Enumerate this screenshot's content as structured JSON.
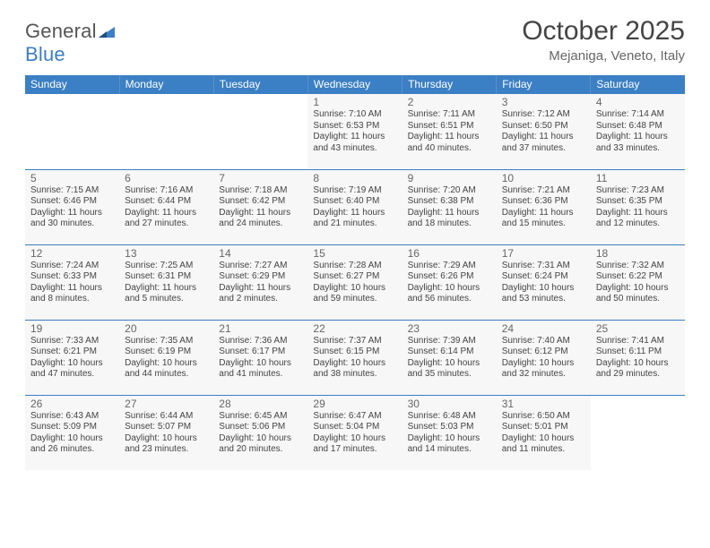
{
  "colors": {
    "accent": "#3b7fc4",
    "text": "#333333",
    "muted": "#666666",
    "grid": "#3b7fc4",
    "cell_bg": "#f7f7f7",
    "page_bg": "#ffffff"
  },
  "logo": {
    "word1": "General",
    "word2": "Blue"
  },
  "header": {
    "month_title": "October 2025",
    "location": "Mejaniga, Veneto, Italy"
  },
  "day_headers": [
    "Sunday",
    "Monday",
    "Tuesday",
    "Wednesday",
    "Thursday",
    "Friday",
    "Saturday"
  ],
  "weeks": [
    [
      {
        "empty": true
      },
      {
        "empty": true
      },
      {
        "empty": true
      },
      {
        "day": "1",
        "sunrise": "Sunrise: 7:10 AM",
        "sunset": "Sunset: 6:53 PM",
        "day1": "Daylight: 11 hours",
        "day2": "and 43 minutes."
      },
      {
        "day": "2",
        "sunrise": "Sunrise: 7:11 AM",
        "sunset": "Sunset: 6:51 PM",
        "day1": "Daylight: 11 hours",
        "day2": "and 40 minutes."
      },
      {
        "day": "3",
        "sunrise": "Sunrise: 7:12 AM",
        "sunset": "Sunset: 6:50 PM",
        "day1": "Daylight: 11 hours",
        "day2": "and 37 minutes."
      },
      {
        "day": "4",
        "sunrise": "Sunrise: 7:14 AM",
        "sunset": "Sunset: 6:48 PM",
        "day1": "Daylight: 11 hours",
        "day2": "and 33 minutes."
      }
    ],
    [
      {
        "day": "5",
        "sunrise": "Sunrise: 7:15 AM",
        "sunset": "Sunset: 6:46 PM",
        "day1": "Daylight: 11 hours",
        "day2": "and 30 minutes."
      },
      {
        "day": "6",
        "sunrise": "Sunrise: 7:16 AM",
        "sunset": "Sunset: 6:44 PM",
        "day1": "Daylight: 11 hours",
        "day2": "and 27 minutes."
      },
      {
        "day": "7",
        "sunrise": "Sunrise: 7:18 AM",
        "sunset": "Sunset: 6:42 PM",
        "day1": "Daylight: 11 hours",
        "day2": "and 24 minutes."
      },
      {
        "day": "8",
        "sunrise": "Sunrise: 7:19 AM",
        "sunset": "Sunset: 6:40 PM",
        "day1": "Daylight: 11 hours",
        "day2": "and 21 minutes."
      },
      {
        "day": "9",
        "sunrise": "Sunrise: 7:20 AM",
        "sunset": "Sunset: 6:38 PM",
        "day1": "Daylight: 11 hours",
        "day2": "and 18 minutes."
      },
      {
        "day": "10",
        "sunrise": "Sunrise: 7:21 AM",
        "sunset": "Sunset: 6:36 PM",
        "day1": "Daylight: 11 hours",
        "day2": "and 15 minutes."
      },
      {
        "day": "11",
        "sunrise": "Sunrise: 7:23 AM",
        "sunset": "Sunset: 6:35 PM",
        "day1": "Daylight: 11 hours",
        "day2": "and 12 minutes."
      }
    ],
    [
      {
        "day": "12",
        "sunrise": "Sunrise: 7:24 AM",
        "sunset": "Sunset: 6:33 PM",
        "day1": "Daylight: 11 hours",
        "day2": "and 8 minutes."
      },
      {
        "day": "13",
        "sunrise": "Sunrise: 7:25 AM",
        "sunset": "Sunset: 6:31 PM",
        "day1": "Daylight: 11 hours",
        "day2": "and 5 minutes."
      },
      {
        "day": "14",
        "sunrise": "Sunrise: 7:27 AM",
        "sunset": "Sunset: 6:29 PM",
        "day1": "Daylight: 11 hours",
        "day2": "and 2 minutes."
      },
      {
        "day": "15",
        "sunrise": "Sunrise: 7:28 AM",
        "sunset": "Sunset: 6:27 PM",
        "day1": "Daylight: 10 hours",
        "day2": "and 59 minutes."
      },
      {
        "day": "16",
        "sunrise": "Sunrise: 7:29 AM",
        "sunset": "Sunset: 6:26 PM",
        "day1": "Daylight: 10 hours",
        "day2": "and 56 minutes."
      },
      {
        "day": "17",
        "sunrise": "Sunrise: 7:31 AM",
        "sunset": "Sunset: 6:24 PM",
        "day1": "Daylight: 10 hours",
        "day2": "and 53 minutes."
      },
      {
        "day": "18",
        "sunrise": "Sunrise: 7:32 AM",
        "sunset": "Sunset: 6:22 PM",
        "day1": "Daylight: 10 hours",
        "day2": "and 50 minutes."
      }
    ],
    [
      {
        "day": "19",
        "sunrise": "Sunrise: 7:33 AM",
        "sunset": "Sunset: 6:21 PM",
        "day1": "Daylight: 10 hours",
        "day2": "and 47 minutes."
      },
      {
        "day": "20",
        "sunrise": "Sunrise: 7:35 AM",
        "sunset": "Sunset: 6:19 PM",
        "day1": "Daylight: 10 hours",
        "day2": "and 44 minutes."
      },
      {
        "day": "21",
        "sunrise": "Sunrise: 7:36 AM",
        "sunset": "Sunset: 6:17 PM",
        "day1": "Daylight: 10 hours",
        "day2": "and 41 minutes."
      },
      {
        "day": "22",
        "sunrise": "Sunrise: 7:37 AM",
        "sunset": "Sunset: 6:15 PM",
        "day1": "Daylight: 10 hours",
        "day2": "and 38 minutes."
      },
      {
        "day": "23",
        "sunrise": "Sunrise: 7:39 AM",
        "sunset": "Sunset: 6:14 PM",
        "day1": "Daylight: 10 hours",
        "day2": "and 35 minutes."
      },
      {
        "day": "24",
        "sunrise": "Sunrise: 7:40 AM",
        "sunset": "Sunset: 6:12 PM",
        "day1": "Daylight: 10 hours",
        "day2": "and 32 minutes."
      },
      {
        "day": "25",
        "sunrise": "Sunrise: 7:41 AM",
        "sunset": "Sunset: 6:11 PM",
        "day1": "Daylight: 10 hours",
        "day2": "and 29 minutes."
      }
    ],
    [
      {
        "day": "26",
        "sunrise": "Sunrise: 6:43 AM",
        "sunset": "Sunset: 5:09 PM",
        "day1": "Daylight: 10 hours",
        "day2": "and 26 minutes."
      },
      {
        "day": "27",
        "sunrise": "Sunrise: 6:44 AM",
        "sunset": "Sunset: 5:07 PM",
        "day1": "Daylight: 10 hours",
        "day2": "and 23 minutes."
      },
      {
        "day": "28",
        "sunrise": "Sunrise: 6:45 AM",
        "sunset": "Sunset: 5:06 PM",
        "day1": "Daylight: 10 hours",
        "day2": "and 20 minutes."
      },
      {
        "day": "29",
        "sunrise": "Sunrise: 6:47 AM",
        "sunset": "Sunset: 5:04 PM",
        "day1": "Daylight: 10 hours",
        "day2": "and 17 minutes."
      },
      {
        "day": "30",
        "sunrise": "Sunrise: 6:48 AM",
        "sunset": "Sunset: 5:03 PM",
        "day1": "Daylight: 10 hours",
        "day2": "and 14 minutes."
      },
      {
        "day": "31",
        "sunrise": "Sunrise: 6:50 AM",
        "sunset": "Sunset: 5:01 PM",
        "day1": "Daylight: 10 hours",
        "day2": "and 11 minutes."
      },
      {
        "empty": true
      }
    ]
  ]
}
